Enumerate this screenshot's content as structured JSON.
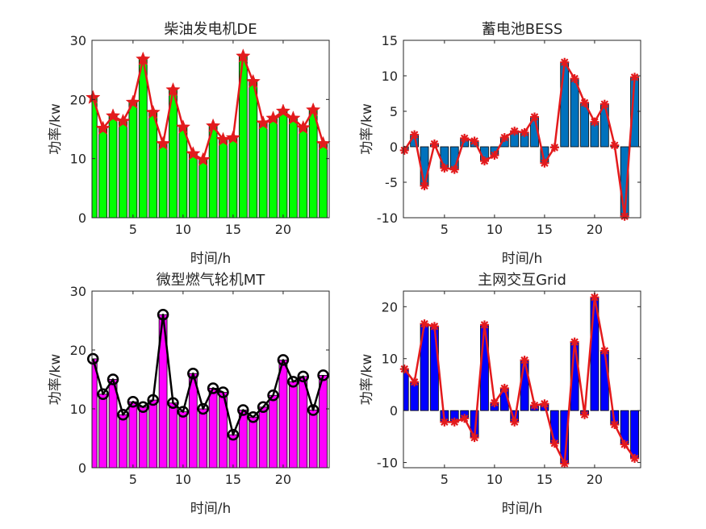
{
  "figure": {
    "background": "#ffffff"
  },
  "chart_data": [
    {
      "type": "bar",
      "title": "柴油发电机DE",
      "xlabel": "时间/h",
      "ylabel": "功率/kw",
      "x": [
        1,
        2,
        3,
        4,
        5,
        6,
        7,
        8,
        9,
        10,
        11,
        12,
        13,
        14,
        15,
        16,
        17,
        18,
        19,
        20,
        21,
        22,
        23,
        24
      ],
      "values": [
        20.3,
        15.1,
        17.2,
        16.3,
        19.5,
        26.8,
        17.8,
        12.5,
        21.6,
        15.3,
        10.8,
        9.8,
        15.5,
        13.2,
        13.5,
        27.3,
        23.0,
        16.0,
        16.8,
        18.0,
        16.8,
        15.2,
        18.2,
        12.5
      ],
      "xlim": [
        0.9,
        24.6
      ],
      "ylim": [
        0,
        30
      ],
      "xticks": [
        5,
        10,
        15,
        20
      ],
      "yticks": [
        0,
        10,
        20,
        30
      ],
      "bar_color": "#00ff00",
      "line_color": "#e31a1c",
      "marker": "star"
    },
    {
      "type": "bar",
      "title": "蓄电池BESS",
      "xlabel": "时间/h",
      "ylabel": "功率/kw",
      "x": [
        1,
        2,
        3,
        4,
        5,
        6,
        7,
        8,
        9,
        10,
        11,
        12,
        13,
        14,
        15,
        16,
        17,
        18,
        19,
        20,
        21,
        22,
        23,
        24
      ],
      "values": [
        -0.5,
        1.7,
        -5.5,
        0.4,
        -3.0,
        -3.2,
        1.2,
        0.8,
        -2.0,
        -1.2,
        1.3,
        2.2,
        2.0,
        4.2,
        -2.3,
        -0.1,
        11.9,
        9.6,
        6.2,
        3.5,
        6.0,
        0.2,
        -9.8,
        9.8
      ],
      "xlim": [
        0.9,
        24.6
      ],
      "ylim": [
        -10,
        15
      ],
      "xticks": [
        5,
        10,
        15,
        20
      ],
      "yticks": [
        -10,
        -5,
        0,
        5,
        10,
        15
      ],
      "bar_color": "#0072bd",
      "line_color": "#e31a1c",
      "marker": "asterisk"
    },
    {
      "type": "bar",
      "title": "微型燃气轮机MT",
      "xlabel": "时间/h",
      "ylabel": "功率/kw",
      "x": [
        1,
        2,
        3,
        4,
        5,
        6,
        7,
        8,
        9,
        10,
        11,
        12,
        13,
        14,
        15,
        16,
        17,
        18,
        19,
        20,
        21,
        22,
        23,
        24
      ],
      "values": [
        18.5,
        12.5,
        15.0,
        9.0,
        11.2,
        10.3,
        11.5,
        26.0,
        11.0,
        9.5,
        16.0,
        10.0,
        13.5,
        12.8,
        5.6,
        9.8,
        8.6,
        10.3,
        12.3,
        18.3,
        14.6,
        15.5,
        9.8,
        15.7
      ],
      "xlim": [
        0.9,
        24.6
      ],
      "ylim": [
        0,
        30
      ],
      "xticks": [
        5,
        10,
        15,
        20
      ],
      "yticks": [
        0,
        10,
        20,
        30
      ],
      "bar_color": "#ff00ff",
      "line_color": "#000000",
      "marker": "circle"
    },
    {
      "type": "bar",
      "title": "主网交互Grid",
      "xlabel": "时间/h",
      "ylabel": "功率/kw",
      "x": [
        1,
        2,
        3,
        4,
        5,
        6,
        7,
        8,
        9,
        10,
        11,
        12,
        13,
        14,
        15,
        16,
        17,
        18,
        19,
        20,
        21,
        22,
        23,
        24
      ],
      "values": [
        8.0,
        5.5,
        16.7,
        16.2,
        -2.2,
        -2.2,
        -1.5,
        -5.2,
        16.5,
        1.5,
        4.3,
        -2.2,
        9.7,
        1.0,
        1.3,
        -6.3,
        -10.2,
        13.2,
        -0.8,
        21.8,
        11.5,
        -2.7,
        -6.5,
        -9.2
      ],
      "xlim": [
        0.9,
        24.6
      ],
      "ylim": [
        -11,
        23
      ],
      "xticks": [
        5,
        10,
        15,
        20
      ],
      "yticks": [
        -10,
        0,
        10,
        20
      ],
      "bar_color": "#0000ff",
      "line_color": "#e31a1c",
      "marker": "asterisk"
    }
  ]
}
